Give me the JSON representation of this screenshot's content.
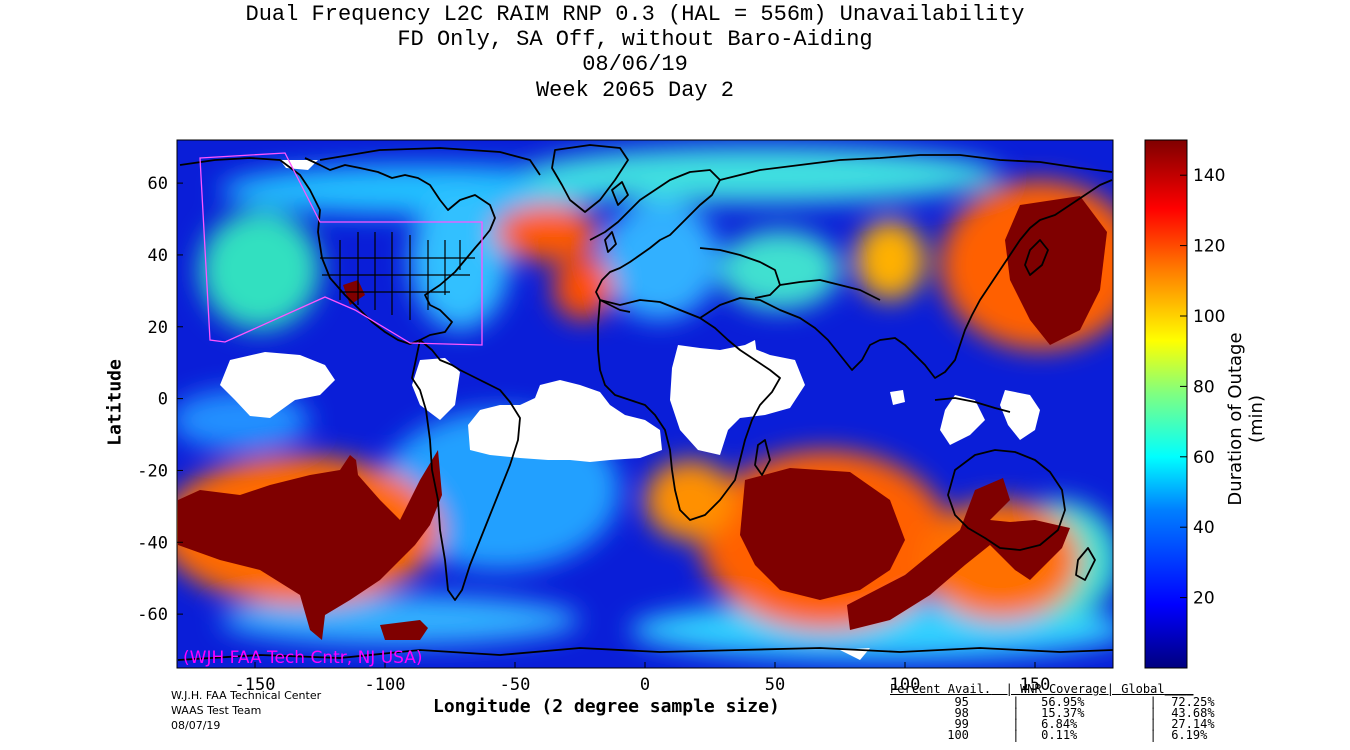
{
  "titles": {
    "line1": "Dual Frequency L2C RAIM RNP 0.3 (HAL = 556m) Unavailability",
    "line2": "FD Only, SA Off, without Baro-Aiding",
    "line3": "08/06/19",
    "line4": "Week 2065 Day 2"
  },
  "map": {
    "lon_range": [
      -180,
      180
    ],
    "lat_range": [
      -75,
      72
    ],
    "x_ticks": [
      -150,
      -100,
      -50,
      0,
      50,
      100,
      150
    ],
    "y_ticks": [
      60,
      40,
      20,
      0,
      -20,
      -40,
      -60
    ],
    "x_axis_label": "Longitude (2 degree sample size)",
    "y_axis_label": "Latitude",
    "watermark": "(WJH FAA Tech Cntr, NJ USA)",
    "watermark_color": "#ff00ff",
    "service_region_color": "#ff55ff"
  },
  "colorbar": {
    "label": "Duration of Outage (min)",
    "ticks": [
      140,
      120,
      100,
      80,
      60,
      40,
      20
    ],
    "range": [
      0,
      150
    ],
    "colors": [
      "#00007f",
      "#0000ff",
      "#0080ff",
      "#00ffff",
      "#80ff80",
      "#ffff00",
      "#ff8000",
      "#ff0000",
      "#7f0000"
    ]
  },
  "credits": [
    "W.J.H. FAA Technical Center",
    "WAAS Test Team",
    "08/07/19"
  ],
  "stats": {
    "header": "Percent Avail.",
    "col2": "WNR Coverage",
    "col3": "Global",
    "rows": [
      {
        "avail": "95",
        "wnr": "56.95%",
        "global": "72.25%"
      },
      {
        "avail": "98",
        "wnr": "15.37%",
        "global": "43.68%"
      },
      {
        "avail": "99",
        "wnr": "6.84%",
        "global": "27.14%"
      },
      {
        "avail": "100",
        "wnr": "0.11%",
        "global": "6.19%"
      }
    ]
  }
}
